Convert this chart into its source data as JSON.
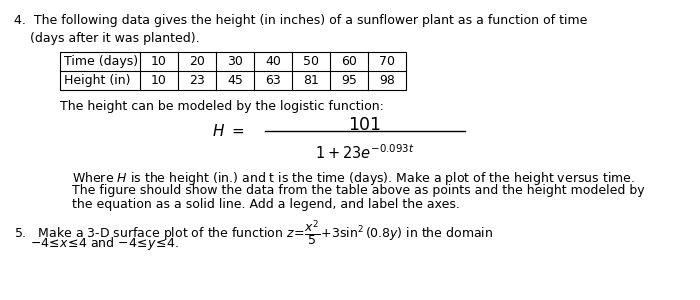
{
  "bg_color": "#ffffff",
  "text_color": "#000000",
  "figsize": [
    7.0,
    3.0
  ],
  "dpi": 100,
  "item4_header": "4.  The following data gives the height (in inches) of a sunflower plant as a function of time",
  "item4_subheader": "     (days after it was planted).",
  "table_time_label": "Time (days)",
  "table_height_label": "Height (in)",
  "time_values": [
    10,
    20,
    30,
    40,
    50,
    60,
    70
  ],
  "height_values": [
    10,
    23,
    45,
    63,
    81,
    95,
    98
  ],
  "logistic_text": "The height can be modeled by the logistic function:",
  "body_where": "Where H is the height (in.) and t is the time (days). Make a plot of the height versus time.",
  "body_line2": "The figure should show the data from the table above as points and the height modeled by",
  "body_line3": "the equation as a solid line. Add a legend, and label the axes.",
  "font_size_main": 9.0,
  "font_size_eq_num": 12.5,
  "font_size_eq_denom": 10.5,
  "font_size_H": 11.0
}
